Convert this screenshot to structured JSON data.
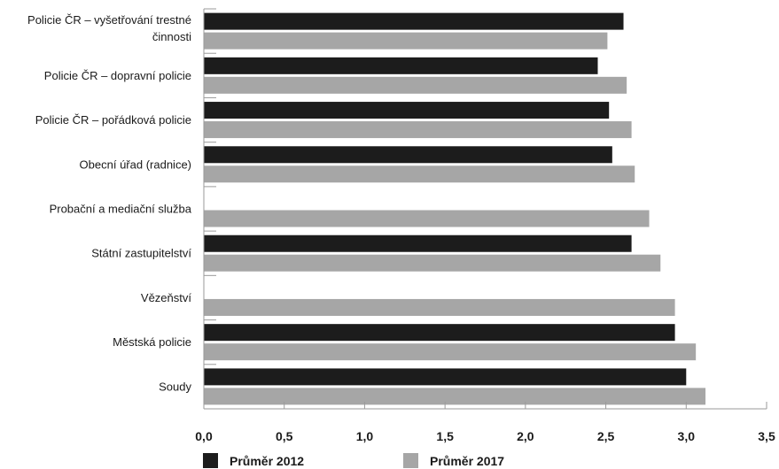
{
  "chart_data": {
    "type": "bar",
    "orientation": "horizontal",
    "categories": [
      "Policie ČR – vyšetřování trestné činnosti",
      "Policie ČR – dopravní policie",
      "Policie ČR – pořádková policie",
      "Obecní úřad (radnice)",
      "Probační a mediační služba",
      "Státní zastupitelství",
      "Vězeňství",
      "Městská policie",
      "Soudy"
    ],
    "category_lines": [
      [
        "Policie ČR – vyšetřování trestné",
        "činnosti"
      ],
      [
        "Policie ČR – dopravní policie"
      ],
      [
        "Policie ČR – pořádková policie"
      ],
      [
        "Obecní úřad (radnice)"
      ],
      [
        "Probační a mediační služba"
      ],
      [
        "Státní zastupitelství"
      ],
      [
        "Vězeňství"
      ],
      [
        "Městská policie"
      ],
      [
        "Soudy"
      ]
    ],
    "series": [
      {
        "name": "Průměr 2012",
        "color": "#1c1c1c",
        "values": [
          2.61,
          2.45,
          2.52,
          2.54,
          null,
          2.66,
          null,
          2.93,
          3.0
        ]
      },
      {
        "name": "Průměr 2017",
        "color": "#a6a6a6",
        "values": [
          2.51,
          2.63,
          2.66,
          2.68,
          2.77,
          2.84,
          2.93,
          3.06,
          3.12
        ]
      }
    ],
    "xlim": [
      0,
      3.5
    ],
    "x_ticks": [
      "0,0",
      "0,5",
      "1,0",
      "1,5",
      "2,0",
      "2,5",
      "3,0",
      "3,5"
    ],
    "legend_position": "bottom-left",
    "grid": false
  }
}
